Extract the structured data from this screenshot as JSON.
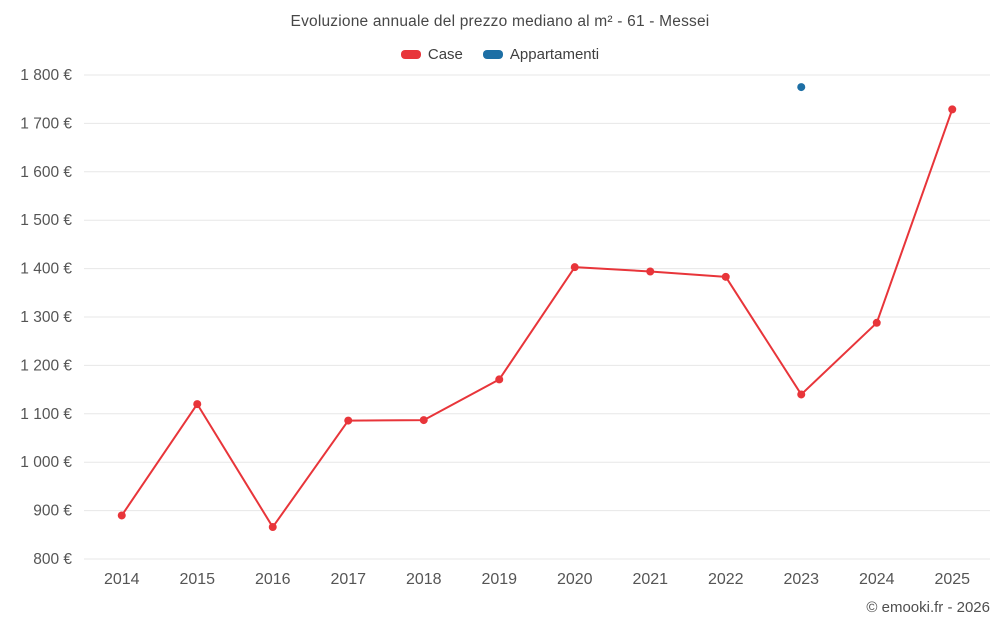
{
  "title": "Evoluzione annuale del prezzo mediano al m² - 61 - Messei",
  "footer": "© emooki.fr - 2026",
  "colors": {
    "case": "#e8353a",
    "appartamenti": "#1d6fa5",
    "grid": "#e7e7e7",
    "axis_text": "#555555"
  },
  "legend": {
    "items": [
      {
        "label": "Case",
        "color": "#e8353a"
      },
      {
        "label": "Appartamenti",
        "color": "#1d6fa5"
      }
    ]
  },
  "chart_data": {
    "type": "line",
    "title": "Evoluzione annuale del prezzo mediano al m² - 61 - Messei",
    "x": [
      2014,
      2015,
      2016,
      2017,
      2018,
      2019,
      2020,
      2021,
      2022,
      2023,
      2024,
      2025
    ],
    "series": [
      {
        "name": "Case",
        "color": "#e8353a",
        "values": [
          890,
          1120,
          866,
          1086,
          1087,
          1171,
          1403,
          1394,
          1383,
          1140,
          1288,
          1729
        ]
      },
      {
        "name": "Appartamenti",
        "color": "#1d6fa5",
        "points": [
          {
            "x": 2023,
            "y": 1775
          }
        ]
      }
    ],
    "ylim": [
      800,
      1800
    ],
    "ytick_step": 100,
    "ytick_suffix": " €",
    "xlabel": "",
    "ylabel": "",
    "grid": true,
    "legend_position": "top"
  }
}
